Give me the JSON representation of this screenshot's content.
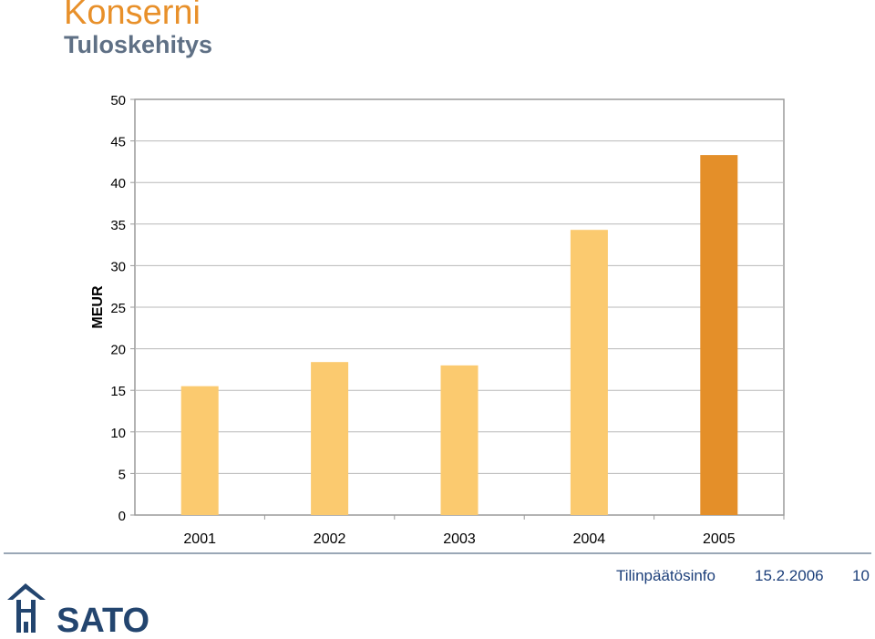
{
  "slide": {
    "title": "Konserni",
    "subtitle": "Tuloskehitys"
  },
  "footer": {
    "info": "Tilinpäätösinfo",
    "date": "15.2.2006",
    "page": "10"
  },
  "logo": {
    "text": "SATO"
  },
  "colors": {
    "accent_orange": "#e8902a",
    "subtitle_gray": "#5f7085",
    "bar_light": "#fbca6f",
    "bar_highlight": "#e48f29",
    "footer_blue": "#1c3f7a",
    "logo_blue": "#23456f"
  },
  "chart_data": {
    "type": "bar",
    "categories": [
      "2001",
      "2002",
      "2003",
      "2004",
      "2005"
    ],
    "values": [
      15.5,
      18.4,
      18.0,
      34.3,
      43.3
    ],
    "highlight_index": 4,
    "title": "",
    "xlabel": "",
    "ylabel": "MEUR",
    "ylim": [
      0,
      50
    ],
    "yticks": [
      0,
      5,
      10,
      15,
      20,
      25,
      30,
      35,
      40,
      45,
      50
    ],
    "grid": true
  }
}
